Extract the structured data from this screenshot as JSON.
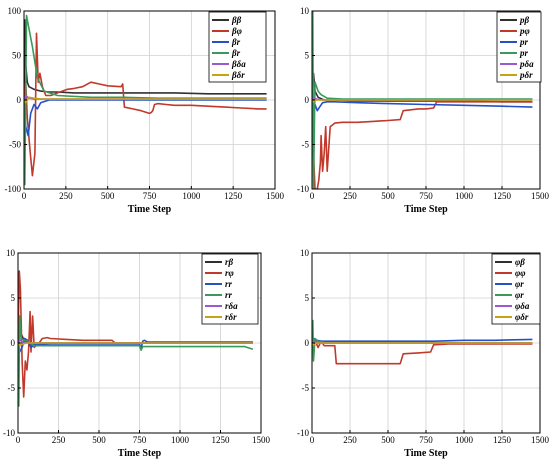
{
  "colors": {
    "s0": "#303030",
    "s1": "#c0392b",
    "s2": "#2550c8",
    "s3": "#3a9a5b",
    "s4": "#9b59d0",
    "s5": "#c8a215"
  },
  "chart_data": [
    {
      "type": "line",
      "xlabel": "Time Step",
      "ylabel": "",
      "xlim": [
        0,
        1500
      ],
      "ylim": [
        -100,
        100
      ],
      "xticks": [
        "0",
        "250",
        "500",
        "750",
        "1000",
        "1250",
        "1500"
      ],
      "yticks": [
        "-100",
        "-50",
        "0",
        "50",
        "100"
      ],
      "grid": true,
      "legend_position": "top-right",
      "series": [
        {
          "name": "ββ",
          "x": [
            0,
            5,
            10,
            20,
            30,
            60,
            100,
            150,
            200,
            300,
            400,
            500,
            700,
            900,
            1100,
            1300,
            1450
          ],
          "y": [
            0,
            90,
            40,
            20,
            15,
            12,
            10,
            9,
            9,
            8,
            8,
            8,
            8,
            8,
            7,
            7,
            7
          ]
        },
        {
          "name": "βφ",
          "x": [
            0,
            10,
            20,
            35,
            50,
            65,
            75,
            85,
            95,
            110,
            130,
            160,
            200,
            260,
            300,
            350,
            400,
            450,
            500,
            580,
            590,
            600,
            650,
            700,
            750,
            760,
            770,
            780,
            800,
            850,
            900,
            1000,
            1100,
            1200,
            1300,
            1400,
            1450
          ],
          "y": [
            0,
            20,
            -20,
            -55,
            -85,
            -60,
            75,
            20,
            30,
            15,
            5,
            5,
            8,
            12,
            13,
            15,
            20,
            18,
            16,
            15,
            18,
            -8,
            -10,
            -12,
            -15,
            -14,
            -12,
            -5,
            -4,
            -5,
            -6,
            -6,
            -7,
            -8,
            -9,
            -10,
            -10
          ]
        },
        {
          "name": "βr",
          "x": [
            0,
            10,
            25,
            40,
            60,
            80,
            100,
            150,
            250,
            500,
            750,
            1000,
            1250,
            1450
          ],
          "y": [
            0,
            -30,
            -40,
            -15,
            -5,
            -10,
            -3,
            0,
            0,
            0,
            0,
            0,
            0,
            0
          ]
        },
        {
          "name": "βr",
          "x": [
            0,
            5,
            15,
            30,
            50,
            80,
            120,
            200,
            400,
            600,
            800,
            1000,
            1250,
            1450
          ],
          "y": [
            0,
            -95,
            95,
            80,
            60,
            25,
            10,
            5,
            3,
            3,
            2,
            2,
            2,
            2
          ]
        },
        {
          "name": "βδa",
          "x": [
            0,
            10,
            30,
            60,
            100,
            200,
            400,
            600,
            800,
            1000,
            1200,
            1450
          ],
          "y": [
            0,
            5,
            2,
            1,
            1,
            1,
            1,
            1,
            1,
            1,
            1,
            1
          ]
        },
        {
          "name": "βδr",
          "x": [
            0,
            10,
            30,
            60,
            100,
            200,
            400,
            600,
            800,
            1000,
            1200,
            1450
          ],
          "y": [
            0,
            -3,
            3,
            2,
            1,
            1,
            1,
            1,
            1,
            1,
            1,
            1
          ]
        }
      ]
    },
    {
      "type": "line",
      "xlabel": "Time Step",
      "ylabel": "",
      "xlim": [
        0,
        1500
      ],
      "ylim": [
        -10,
        10
      ],
      "xticks": [
        "0",
        "250",
        "500",
        "750",
        "1000",
        "1250",
        "1500"
      ],
      "yticks": [
        "-10",
        "-5",
        "0",
        "5",
        "10"
      ],
      "grid": true,
      "legend_position": "top-right",
      "series": [
        {
          "name": "pβ",
          "x": [
            0,
            10,
            20,
            40,
            80,
            150,
            300,
            500,
            750,
            1000,
            1250,
            1450
          ],
          "y": [
            0,
            3,
            1,
            0.3,
            0,
            0,
            -0.1,
            -0.1,
            -0.1,
            -0.1,
            -0.2,
            -0.2
          ]
        },
        {
          "name": "pφ",
          "x": [
            0,
            10,
            20,
            35,
            45,
            55,
            60,
            70,
            80,
            90,
            100,
            120,
            150,
            200,
            300,
            400,
            500,
            580,
            600,
            650,
            700,
            750,
            800,
            820,
            900,
            1000,
            1100,
            1200,
            1300,
            1400,
            1450
          ],
          "y": [
            0,
            -6,
            -10,
            -10,
            -9,
            -7,
            -4,
            -8,
            -6,
            -3,
            -8,
            -3,
            -2.6,
            -2.5,
            -2.5,
            -2.4,
            -2.3,
            -2.2,
            -1.2,
            -1.1,
            -1.0,
            -1.0,
            -0.9,
            -0.2,
            -0.2,
            -0.2,
            -0.2,
            -0.2,
            -0.2,
            -0.2,
            -0.2
          ]
        },
        {
          "name": "pr",
          "x": [
            0,
            10,
            20,
            35,
            50,
            70,
            100,
            150,
            300,
            500,
            750,
            1000,
            1250,
            1450
          ],
          "y": [
            0,
            -1.5,
            -0.5,
            -1.2,
            -0.8,
            -0.3,
            -0.2,
            -0.2,
            -0.3,
            -0.4,
            -0.5,
            -0.6,
            -0.7,
            -0.8
          ]
        },
        {
          "name": "pr",
          "x": [
            0,
            5,
            10,
            20,
            40,
            60,
            100,
            200,
            500,
            800,
            1000,
            1200,
            1450
          ],
          "y": [
            0,
            10,
            -10,
            2,
            1,
            0.6,
            0.2,
            0.1,
            0.1,
            0.1,
            0.1,
            0.1,
            0.1
          ]
        },
        {
          "name": "pδa",
          "x": [
            0,
            10,
            30,
            60,
            100,
            200,
            500,
            800,
            1000,
            1200,
            1450
          ],
          "y": [
            0,
            0.3,
            0.1,
            0,
            0,
            0,
            0,
            0,
            0,
            0,
            0
          ]
        },
        {
          "name": "pδr",
          "x": [
            0,
            10,
            30,
            60,
            100,
            200,
            500,
            800,
            1000,
            1200,
            1450
          ],
          "y": [
            0,
            -0.2,
            0,
            0,
            0,
            0,
            0,
            0,
            0,
            0,
            0
          ]
        }
      ]
    },
    {
      "type": "line",
      "xlabel": "Time Step",
      "ylabel": "",
      "xlim": [
        0,
        1500
      ],
      "ylim": [
        -10,
        10
      ],
      "xticks": [
        "0",
        "250",
        "500",
        "750",
        "1000",
        "1250",
        "1500"
      ],
      "yticks": [
        "-10",
        "-5",
        "0",
        "5",
        "10"
      ],
      "grid": true,
      "legend_position": "top-right",
      "series": [
        {
          "name": "rβ",
          "x": [
            0,
            10,
            20,
            40,
            80,
            150,
            300,
            500,
            750,
            1000,
            1250,
            1450
          ],
          "y": [
            0,
            3,
            1,
            0.2,
            0,
            0,
            0,
            0,
            0,
            0,
            0,
            0
          ]
        },
        {
          "name": "rφ",
          "x": [
            0,
            8,
            15,
            25,
            35,
            45,
            55,
            65,
            75,
            80,
            90,
            100,
            110,
            130,
            150,
            180,
            200,
            300,
            400,
            500,
            580,
            600,
            700,
            800,
            900,
            1000,
            1100,
            1200,
            1300,
            1400,
            1450
          ],
          "y": [
            0,
            8,
            6,
            -2,
            -6,
            -2,
            -3,
            -1,
            3.5,
            -1,
            3,
            -0.5,
            -0.3,
            0,
            0.5,
            0.6,
            0.5,
            0.4,
            0.3,
            0.3,
            0.3,
            0,
            0,
            0,
            0,
            0,
            0,
            0,
            0,
            0,
            0
          ]
        },
        {
          "name": "rr",
          "x": [
            0,
            10,
            25,
            40,
            60,
            80,
            100,
            200,
            400,
            600,
            750,
            760,
            770,
            780,
            800,
            1000,
            1200,
            1450
          ],
          "y": [
            0,
            -1,
            -0.5,
            0.5,
            0.3,
            -0.5,
            -0.2,
            -0.1,
            -0.1,
            -0.1,
            -0.1,
            -0.6,
            0.2,
            0.3,
            0.1,
            0.1,
            0.1,
            0.1
          ]
        },
        {
          "name": "rr",
          "x": [
            0,
            5,
            10,
            20,
            40,
            60,
            100,
            200,
            400,
            600,
            750,
            760,
            770,
            800,
            1000,
            1200,
            1400,
            1450
          ],
          "y": [
            0,
            -7,
            3,
            0.5,
            0.3,
            0.2,
            -0.3,
            -0.3,
            -0.3,
            -0.3,
            -0.3,
            -0.8,
            -0.4,
            -0.4,
            -0.4,
            -0.4,
            -0.4,
            -0.7
          ]
        },
        {
          "name": "rδa",
          "x": [
            0,
            10,
            30,
            60,
            100,
            200,
            500,
            800,
            1000,
            1200,
            1450
          ],
          "y": [
            0,
            0.4,
            0.1,
            0,
            0,
            0,
            0,
            0,
            0,
            0,
            0
          ]
        },
        {
          "name": "rδr",
          "x": [
            0,
            10,
            30,
            60,
            100,
            200,
            500,
            800,
            1000,
            1200,
            1450
          ],
          "y": [
            0,
            -0.3,
            -0.1,
            0,
            0,
            0,
            0,
            0,
            0,
            0,
            0
          ]
        }
      ]
    },
    {
      "type": "line",
      "xlabel": "Time Step",
      "ylabel": "",
      "xlim": [
        0,
        1500
      ],
      "ylim": [
        -10,
        10
      ],
      "xticks": [
        "0",
        "250",
        "500",
        "750",
        "1000",
        "1250",
        "1500"
      ],
      "yticks": [
        "-10",
        "-5",
        "0",
        "5",
        "10"
      ],
      "grid": true,
      "legend_position": "top-right",
      "series": [
        {
          "name": "φβ",
          "x": [
            0,
            10,
            20,
            40,
            80,
            150,
            300,
            500,
            750,
            1000,
            1250,
            1450
          ],
          "y": [
            0,
            0.5,
            0.2,
            0,
            0,
            0,
            0,
            0,
            0,
            0,
            0,
            0
          ]
        },
        {
          "name": "φφ",
          "x": [
            0,
            10,
            20,
            40,
            60,
            80,
            100,
            150,
            160,
            200,
            300,
            400,
            500,
            580,
            600,
            700,
            780,
            800,
            900,
            1000,
            1100,
            1200,
            1300,
            1400,
            1450
          ],
          "y": [
            0,
            -0.5,
            0.3,
            -0.5,
            0.2,
            -0.3,
            -0.3,
            -0.3,
            -2.3,
            -2.3,
            -2.3,
            -2.3,
            -2.3,
            -2.3,
            -1.2,
            -1.1,
            -1.0,
            -0.2,
            -0.1,
            -0.1,
            -0.1,
            -0.1,
            -0.1,
            -0.1,
            -0.1
          ]
        },
        {
          "name": "φr",
          "x": [
            0,
            10,
            30,
            60,
            100,
            200,
            500,
            800,
            1000,
            1200,
            1450
          ],
          "y": [
            0,
            0.5,
            0.3,
            0.2,
            0.2,
            0.2,
            0.2,
            0.2,
            0.3,
            0.3,
            0.4
          ]
        },
        {
          "name": "φr",
          "x": [
            0,
            5,
            10,
            20,
            40,
            60,
            100,
            200,
            500,
            800,
            1000,
            1200,
            1450
          ],
          "y": [
            0,
            2.5,
            -2,
            0.5,
            0.2,
            0.1,
            0,
            0,
            0,
            0,
            0,
            0,
            0
          ]
        },
        {
          "name": "φδa",
          "x": [
            0,
            10,
            30,
            60,
            100,
            200,
            500,
            800,
            1000,
            1200,
            1450
          ],
          "y": [
            0,
            0.2,
            0.1,
            0,
            0,
            0,
            0,
            0,
            0,
            0,
            0
          ]
        },
        {
          "name": "φδr",
          "x": [
            0,
            10,
            30,
            60,
            100,
            200,
            500,
            800,
            1000,
            1200,
            1450
          ],
          "y": [
            0,
            -0.2,
            0,
            0,
            0,
            0,
            0,
            0,
            0,
            0,
            0
          ]
        }
      ]
    }
  ]
}
